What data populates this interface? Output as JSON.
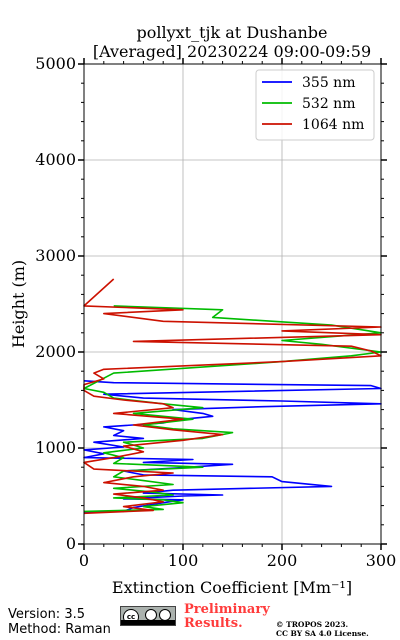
{
  "chart_data": {
    "type": "line",
    "title": "pollyxt_tjk at Dushanbe",
    "subtitle": "[Averaged] 20230224 09:00-09:59",
    "xlabel": "Extinction Coefficient [Mm⁻¹]",
    "ylabel": "Height (m)",
    "xlim": [
      0,
      300
    ],
    "ylim": [
      0,
      5000
    ],
    "xticks": [
      "0",
      "100",
      "200",
      "300"
    ],
    "yticks": [
      "0",
      "1000",
      "2000",
      "3000",
      "4000",
      "5000"
    ],
    "grid": true,
    "legend_position": "top-right",
    "series": [
      {
        "name": "355 nm",
        "color": "#0000ff",
        "points": [
          [
            0,
            330
          ],
          [
            40,
            340
          ],
          [
            50,
            380
          ],
          [
            80,
            430
          ],
          [
            100,
            460
          ],
          [
            40,
            470
          ],
          [
            100,
            500
          ],
          [
            140,
            510
          ],
          [
            60,
            530
          ],
          [
            90,
            560
          ],
          [
            250,
            600
          ],
          [
            200,
            650
          ],
          [
            190,
            700
          ],
          [
            60,
            720
          ],
          [
            40,
            760
          ],
          [
            90,
            790
          ],
          [
            150,
            830
          ],
          [
            60,
            850
          ],
          [
            110,
            880
          ],
          [
            0,
            900
          ],
          [
            20,
            940
          ],
          [
            0,
            980
          ],
          [
            40,
            1010
          ],
          [
            10,
            1060
          ],
          [
            60,
            1100
          ],
          [
            30,
            1130
          ],
          [
            40,
            1180
          ],
          [
            20,
            1220
          ],
          [
            80,
            1260
          ],
          [
            90,
            1290
          ],
          [
            130,
            1330
          ],
          [
            120,
            1360
          ],
          [
            90,
            1400
          ],
          [
            180,
            1430
          ],
          [
            300,
            1460
          ],
          [
            200,
            1490
          ],
          [
            60,
            1520
          ],
          [
            20,
            1560
          ],
          [
            300,
            1620
          ],
          [
            290,
            1650
          ],
          [
            30,
            1680
          ],
          [
            0,
            1700
          ]
        ]
      },
      {
        "name": "532 nm",
        "color": "#00bb00",
        "points": [
          [
            0,
            340
          ],
          [
            80,
            360
          ],
          [
            60,
            390
          ],
          [
            100,
            430
          ],
          [
            80,
            460
          ],
          [
            30,
            480
          ],
          [
            90,
            510
          ],
          [
            70,
            540
          ],
          [
            30,
            580
          ],
          [
            90,
            620
          ],
          [
            60,
            660
          ],
          [
            30,
            700
          ],
          [
            40,
            760
          ],
          [
            120,
            800
          ],
          [
            30,
            840
          ],
          [
            40,
            900
          ],
          [
            20,
            950
          ],
          [
            60,
            1000
          ],
          [
            40,
            1060
          ],
          [
            120,
            1100
          ],
          [
            150,
            1160
          ],
          [
            90,
            1200
          ],
          [
            60,
            1240
          ],
          [
            110,
            1300
          ],
          [
            50,
            1360
          ],
          [
            120,
            1420
          ],
          [
            80,
            1460
          ],
          [
            30,
            1520
          ],
          [
            20,
            1580
          ],
          [
            0,
            1620
          ],
          [
            30,
            1780
          ],
          [
            200,
            1900
          ],
          [
            270,
            1960
          ],
          [
            300,
            2000
          ],
          [
            240,
            2080
          ],
          [
            200,
            2120
          ],
          [
            300,
            2200
          ],
          [
            250,
            2280
          ],
          [
            130,
            2360
          ],
          [
            140,
            2440
          ],
          [
            30,
            2480
          ]
        ]
      },
      {
        "name": "1064 nm",
        "color": "#cc1100",
        "points": [
          [
            0,
            320
          ],
          [
            70,
            350
          ],
          [
            40,
            390
          ],
          [
            80,
            440
          ],
          [
            60,
            480
          ],
          [
            30,
            520
          ],
          [
            80,
            560
          ],
          [
            60,
            600
          ],
          [
            20,
            640
          ],
          [
            50,
            700
          ],
          [
            90,
            740
          ],
          [
            10,
            780
          ],
          [
            0,
            850
          ],
          [
            30,
            900
          ],
          [
            60,
            960
          ],
          [
            40,
            1020
          ],
          [
            100,
            1080
          ],
          [
            140,
            1140
          ],
          [
            90,
            1190
          ],
          [
            50,
            1240
          ],
          [
            100,
            1300
          ],
          [
            30,
            1360
          ],
          [
            90,
            1420
          ],
          [
            80,
            1460
          ],
          [
            40,
            1500
          ],
          [
            10,
            1540
          ],
          [
            0,
            1600
          ],
          [
            0,
            1660
          ],
          [
            20,
            1720
          ],
          [
            10,
            1780
          ],
          [
            20,
            1820
          ],
          [
            200,
            1900
          ],
          [
            300,
            1960
          ],
          [
            290,
            2010
          ],
          [
            270,
            2060
          ],
          [
            50,
            2110
          ],
          [
            300,
            2180
          ],
          [
            200,
            2220
          ],
          [
            300,
            2260
          ],
          [
            80,
            2320
          ],
          [
            20,
            2400
          ],
          [
            100,
            2440
          ],
          [
            0,
            2480
          ],
          [
            30,
            2760
          ]
        ]
      }
    ]
  },
  "footer": {
    "version": "Version: 3.5",
    "method": "Method: Raman",
    "preliminary_line1": "Preliminary",
    "preliminary_line2": "Results.",
    "copyright_line1": "© TROPOS 2023.",
    "copyright_line2": "CC BY SA 4.0 License.",
    "badge_text": "cc"
  }
}
